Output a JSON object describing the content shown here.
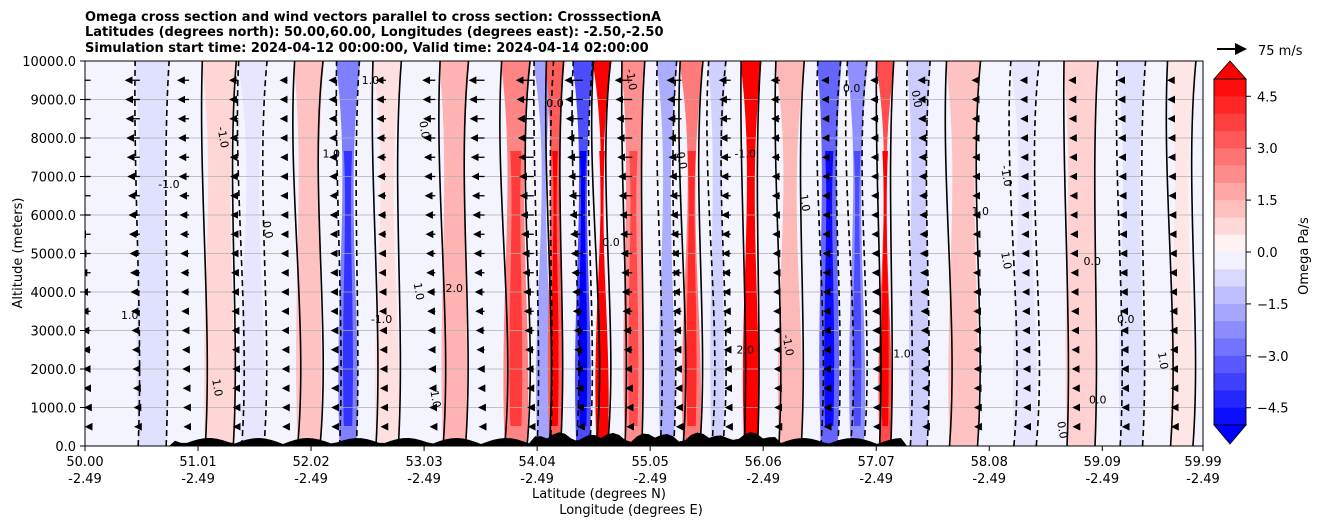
{
  "chart_data": {
    "type": "contourf",
    "title_lines": [
      "Omega cross section and wind vectors parallel to cross section: CrosssectionA",
      "Latitudes (degrees north): 50.00,60.00, Longitudes (degrees east): -2.50,-2.50",
      "Simulation start time: 2024-04-12 00:00:00, Valid time: 2024-04-14 02:00:00"
    ],
    "xlabel_lines": [
      "Latitude (degrees N)",
      "Longitude (degrees E)"
    ],
    "ylabel": "Altitude (meters)",
    "x_ticks": [
      {
        "lat": "50.00",
        "lon": "-2.49"
      },
      {
        "lat": "51.01",
        "lon": "-2.49"
      },
      {
        "lat": "52.02",
        "lon": "-2.49"
      },
      {
        "lat": "53.03",
        "lon": "-2.49"
      },
      {
        "lat": "54.04",
        "lon": "-2.49"
      },
      {
        "lat": "55.05",
        "lon": "-2.49"
      },
      {
        "lat": "56.06",
        "lon": "-2.49"
      },
      {
        "lat": "57.07",
        "lon": "-2.49"
      },
      {
        "lat": "58.08",
        "lon": "-2.49"
      },
      {
        "lat": "59.09",
        "lon": "-2.49"
      },
      {
        "lat": "59.99",
        "lon": "-2.49"
      }
    ],
    "xlim": [
      50.0,
      59.99
    ],
    "y_ticks": [
      "0.0",
      "1000.0",
      "2000.0",
      "3000.0",
      "4000.0",
      "5000.0",
      "6000.0",
      "7000.0",
      "8000.0",
      "9000.0",
      "10000.0"
    ],
    "ylim": [
      0,
      10000
    ],
    "colorbar": {
      "label": "Omega Pa/s",
      "ticks": [
        "4.5",
        "3.0",
        "1.5",
        "0.0",
        "−1.5",
        "−3.0",
        "−4.5"
      ],
      "range": [
        -5,
        5
      ],
      "extend": "both"
    },
    "quiver_key": {
      "label": "75 m/s"
    },
    "vertical_bands": [
      {
        "x": 50.6,
        "w": 0.25,
        "v": -0.6
      },
      {
        "x": 51.2,
        "w": 0.25,
        "v": 0.8
      },
      {
        "x": 51.5,
        "w": 0.2,
        "v": -0.5
      },
      {
        "x": 52.0,
        "w": 0.2,
        "v": 1.2
      },
      {
        "x": 52.35,
        "w": 0.15,
        "v": -2.5
      },
      {
        "x": 52.7,
        "w": 0.2,
        "v": 0.6
      },
      {
        "x": 53.3,
        "w": 0.2,
        "v": 1.5
      },
      {
        "x": 53.85,
        "w": 0.2,
        "v": 2.4
      },
      {
        "x": 54.1,
        "w": 0.12,
        "v": -1.8
      },
      {
        "x": 54.2,
        "w": 0.1,
        "v": 3.2
      },
      {
        "x": 54.45,
        "w": 0.12,
        "v": -3.5
      },
      {
        "x": 54.62,
        "w": 0.1,
        "v": 5.0
      },
      {
        "x": 54.9,
        "w": 0.15,
        "v": 2.2
      },
      {
        "x": 55.2,
        "w": 0.12,
        "v": -1.6
      },
      {
        "x": 55.42,
        "w": 0.15,
        "v": 2.6
      },
      {
        "x": 55.65,
        "w": 0.1,
        "v": -0.9
      },
      {
        "x": 55.95,
        "w": 0.12,
        "v": 5.0
      },
      {
        "x": 56.3,
        "w": 0.2,
        "v": 1.4
      },
      {
        "x": 56.65,
        "w": 0.15,
        "v": -3.0
      },
      {
        "x": 56.9,
        "w": 0.12,
        "v": -2.2
      },
      {
        "x": 57.15,
        "w": 0.1,
        "v": 3.5
      },
      {
        "x": 57.45,
        "w": 0.15,
        "v": -1.0
      },
      {
        "x": 57.85,
        "w": 0.25,
        "v": 1.2
      },
      {
        "x": 58.4,
        "w": 0.2,
        "v": -0.5
      },
      {
        "x": 58.9,
        "w": 0.25,
        "v": 0.9
      },
      {
        "x": 59.35,
        "w": 0.2,
        "v": -0.6
      },
      {
        "x": 59.8,
        "w": 0.2,
        "v": 0.5
      }
    ],
    "contour_labels": [
      {
        "x": 50.75,
        "y": 6700,
        "text": "-1.0"
      },
      {
        "x": 51.2,
        "y": 8000,
        "text": "-1.0"
      },
      {
        "x": 52.55,
        "y": 9400,
        "text": "1.0"
      },
      {
        "x": 53.0,
        "y": 8200,
        "text": "0.0"
      },
      {
        "x": 52.2,
        "y": 7500,
        "text": "1.0"
      },
      {
        "x": 51.6,
        "y": 5600,
        "text": "0.0"
      },
      {
        "x": 52.65,
        "y": 3200,
        "text": "-1.0"
      },
      {
        "x": 52.95,
        "y": 4000,
        "text": "1.0"
      },
      {
        "x": 53.3,
        "y": 4000,
        "text": "2.0"
      },
      {
        "x": 53.1,
        "y": 1200,
        "text": "1.0"
      },
      {
        "x": 54.2,
        "y": 8800,
        "text": "0.0"
      },
      {
        "x": 54.85,
        "y": 9500,
        "text": "-1.0"
      },
      {
        "x": 54.7,
        "y": 5200,
        "text": "0.0"
      },
      {
        "x": 55.3,
        "y": 7400,
        "text": "0.0"
      },
      {
        "x": 55.9,
        "y": 7500,
        "text": "-1.0"
      },
      {
        "x": 56.4,
        "y": 6300,
        "text": "1.0"
      },
      {
        "x": 56.85,
        "y": 9200,
        "text": "0.0"
      },
      {
        "x": 57.4,
        "y": 9000,
        "text": "0.0"
      },
      {
        "x": 58.0,
        "y": 6000,
        "text": "1.0"
      },
      {
        "x": 58.2,
        "y": 7000,
        "text": "-1.0"
      },
      {
        "x": 59.0,
        "y": 4700,
        "text": "0.0"
      },
      {
        "x": 58.2,
        "y": 4800,
        "text": "1.0"
      },
      {
        "x": 59.3,
        "y": 3200,
        "text": "0.0"
      },
      {
        "x": 59.6,
        "y": 2200,
        "text": "1.0"
      },
      {
        "x": 50.4,
        "y": 3300,
        "text": "1.0"
      },
      {
        "x": 51.15,
        "y": 1500,
        "text": "1.0"
      },
      {
        "x": 55.9,
        "y": 2400,
        "text": "2.0"
      },
      {
        "x": 56.25,
        "y": 2600,
        "text": "-1.0"
      },
      {
        "x": 57.3,
        "y": 2300,
        "text": "1.0"
      },
      {
        "x": 58.7,
        "y": 400,
        "text": "0.0"
      },
      {
        "x": 59.05,
        "y": 1100,
        "text": "0.0"
      }
    ]
  }
}
